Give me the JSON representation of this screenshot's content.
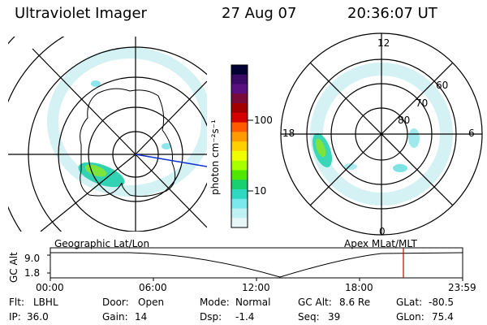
{
  "header": {
    "instrument": "Ultraviolet Imager",
    "date": "27 Aug 07",
    "time": "20:36:07 UT"
  },
  "left_panel": {
    "caption": "Geographic Lat/Lon"
  },
  "right_panel": {
    "caption": "Apex MLat/MLT",
    "mlt_labels": {
      "top": "12",
      "left": "18",
      "right": "6",
      "bottom": "0"
    },
    "lat_labels": [
      "60",
      "70",
      "80"
    ]
  },
  "colorbar": {
    "unit_label": "photon cm⁻²s⁻¹",
    "ticks": [
      "100",
      "10"
    ],
    "colors": [
      "#000033",
      "#3a0a66",
      "#5a0f80",
      "#7a0a3a",
      "#a00000",
      "#d40000",
      "#ff5a00",
      "#ff9a00",
      "#ffd000",
      "#f0ff00",
      "#a8ff00",
      "#4fe600",
      "#18d070",
      "#2fd8c0",
      "#7ae8ec",
      "#bff0f3",
      "#e8f6f8"
    ]
  },
  "altitude_plot": {
    "axis_label": "GC Alt",
    "y_ticks": [
      "9.0",
      "1.8"
    ],
    "x_ticks": [
      "00:00",
      "06:00",
      "12:00",
      "18:00",
      "23:59"
    ],
    "marker_color": "#cc0000",
    "marker_time": "20:36"
  },
  "footer": {
    "row1": [
      {
        "label": "Flt:",
        "value": "LBHL"
      },
      {
        "label": "Door:",
        "value": "Open"
      },
      {
        "label": "Mode:",
        "value": "Normal"
      },
      {
        "label": "GC Alt:",
        "value": "8.6 Re"
      },
      {
        "label": "GLat:",
        "value": "-80.5"
      }
    ],
    "row2": [
      {
        "label": "IP:",
        "value": "36.0"
      },
      {
        "label": "Gain:",
        "value": "14"
      },
      {
        "label": "Dsp:",
        "value": "-1.4"
      },
      {
        "label": "Seq:",
        "value": "39"
      },
      {
        "label": "GLon:",
        "value": "75.4"
      }
    ]
  }
}
